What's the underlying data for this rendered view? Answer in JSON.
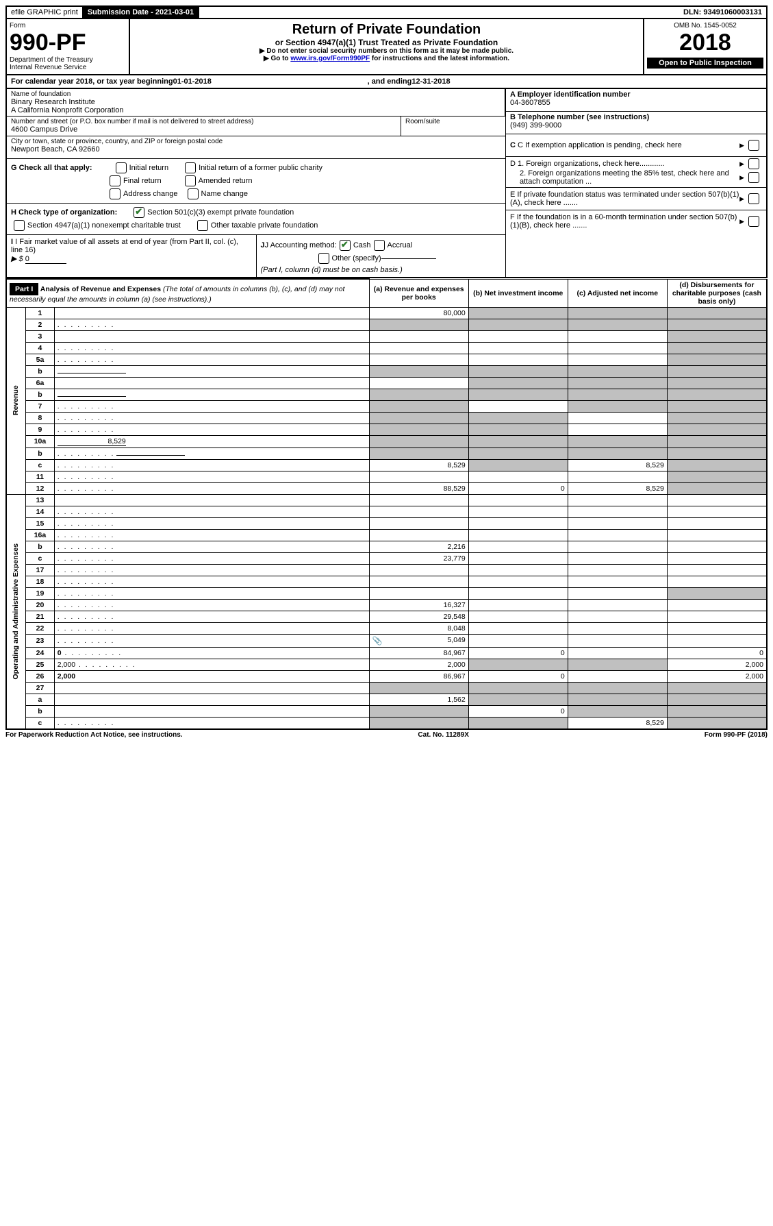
{
  "top": {
    "efile": "efile GRAPHIC print",
    "submission": "Submission Date - 2021-03-01",
    "dln": "DLN: 93491060003131"
  },
  "header": {
    "form_label": "Form",
    "form_num": "990-PF",
    "dept1": "Department of the Treasury",
    "dept2": "Internal Revenue Service",
    "title": "Return of Private Foundation",
    "subtitle": "or Section 4947(a)(1) Trust Treated as Private Foundation",
    "note1": "▶ Do not enter social security numbers on this form as it may be made public.",
    "note2_pre": "▶ Go to ",
    "note2_link": "www.irs.gov/Form990PF",
    "note2_post": " for instructions and the latest information.",
    "omb": "OMB No. 1545-0052",
    "year": "2018",
    "open": "Open to Public Inspection"
  },
  "calendar": {
    "pre": "For calendar year 2018, or tax year beginning ",
    "begin": "01-01-2018",
    "mid": ", and ending ",
    "end": "12-31-2018"
  },
  "info": {
    "name_label": "Name of foundation",
    "name1": "Binary Research Institute",
    "name2": "A California Nonprofit Corporation",
    "addr_label": "Number and street (or P.O. box number if mail is not delivered to street address)",
    "addr": "4600 Campus Drive",
    "room_label": "Room/suite",
    "city_label": "City or town, state or province, country, and ZIP or foreign postal code",
    "city": "Newport Beach, CA  92660",
    "ein_label": "A Employer identification number",
    "ein": "04-3607855",
    "phone_label": "B Telephone number (see instructions)",
    "phone": "(949) 399-9000",
    "c_label": "C If exemption application is pending, check here",
    "d1": "D 1. Foreign organizations, check here............",
    "d2": "2. Foreign organizations meeting the 85% test, check here and attach computation ...",
    "e": "E  If private foundation status was terminated under section 507(b)(1)(A), check here .......",
    "f": "F  If the foundation is in a 60-month termination under section 507(b)(1)(B), check here ......."
  },
  "checks": {
    "g_label": "G Check all that apply:",
    "g_initial": "Initial return",
    "g_initial_former": "Initial return of a former public charity",
    "g_final": "Final return",
    "g_amended": "Amended return",
    "g_address": "Address change",
    "g_name": "Name change",
    "h_label": "H Check type of organization:",
    "h_501c3": "Section 501(c)(3) exempt private foundation",
    "h_4947": "Section 4947(a)(1) nonexempt charitable trust",
    "h_other": "Other taxable private foundation",
    "i_label": "I Fair market value of all assets at end of year (from Part II, col. (c), line 16)",
    "i_amount_pre": "▶ $ ",
    "i_amount": "0",
    "j_label": "J Accounting method:",
    "j_cash": "Cash",
    "j_accrual": "Accrual",
    "j_other": "Other (specify)",
    "j_note": "(Part I, column (d) must be on cash basis.)"
  },
  "part1": {
    "label": "Part I",
    "title": "Analysis of Revenue and Expenses",
    "note": "(The total of amounts in columns (b), (c), and (d) may not necessarily equal the amounts in column (a) (see instructions).)",
    "col_a": "(a)   Revenue and expenses per books",
    "col_b": "(b)  Net investment income",
    "col_c": "(c)  Adjusted net income",
    "col_d": "(d)  Disbursements for charitable purposes (cash basis only)"
  },
  "sections": {
    "revenue": "Revenue",
    "expenses": "Operating and Administrative Expenses"
  },
  "rows": [
    {
      "n": "1",
      "d": "",
      "a": "80,000",
      "b": "",
      "c": "",
      "ga": false,
      "gb": true,
      "gc": true,
      "gd": true
    },
    {
      "n": "2",
      "d": "",
      "a": "",
      "b": "",
      "c": "",
      "ga": true,
      "gb": true,
      "gc": true,
      "gd": true,
      "dots": true
    },
    {
      "n": "3",
      "d": "",
      "a": "",
      "b": "",
      "c": "",
      "gd": true
    },
    {
      "n": "4",
      "d": "",
      "a": "",
      "b": "",
      "c": "",
      "gd": true,
      "dots": true
    },
    {
      "n": "5a",
      "d": "",
      "a": "",
      "b": "",
      "c": "",
      "gd": true,
      "dots": true
    },
    {
      "n": "b",
      "d": "",
      "a": "",
      "b": "",
      "c": "",
      "ga": true,
      "gb": true,
      "gc": true,
      "gd": true,
      "inline": true
    },
    {
      "n": "6a",
      "d": "",
      "a": "",
      "b": "",
      "c": "",
      "gb": true,
      "gc": true,
      "gd": true
    },
    {
      "n": "b",
      "d": "",
      "a": "",
      "b": "",
      "c": "",
      "ga": true,
      "gb": true,
      "gc": true,
      "gd": true,
      "inline": true
    },
    {
      "n": "7",
      "d": "",
      "a": "",
      "b": "",
      "c": "",
      "ga": true,
      "gc": true,
      "gd": true,
      "dots": true
    },
    {
      "n": "8",
      "d": "",
      "a": "",
      "b": "",
      "c": "",
      "ga": true,
      "gb": true,
      "gd": true,
      "dots": true
    },
    {
      "n": "9",
      "d": "",
      "a": "",
      "b": "",
      "c": "",
      "ga": true,
      "gb": true,
      "gd": true,
      "dots": true
    },
    {
      "n": "10a",
      "d": "",
      "a": "",
      "b": "",
      "c": "",
      "ga": true,
      "gb": true,
      "gc": true,
      "gd": true,
      "inline": true,
      "inline_val": "8,529"
    },
    {
      "n": "b",
      "d": "",
      "a": "",
      "b": "",
      "c": "",
      "ga": true,
      "gb": true,
      "gc": true,
      "gd": true,
      "inline": true,
      "dots": true
    },
    {
      "n": "c",
      "d": "",
      "a": "8,529",
      "b": "",
      "c": "8,529",
      "gb": true,
      "gd": true,
      "dots": true
    },
    {
      "n": "11",
      "d": "",
      "a": "",
      "b": "",
      "c": "",
      "gd": true,
      "dots": true
    },
    {
      "n": "12",
      "d": "",
      "a": "88,529",
      "b": "0",
      "c": "8,529",
      "bold": true,
      "gd": true,
      "dots": true
    },
    {
      "n": "13",
      "d": "",
      "a": "",
      "b": "",
      "c": ""
    },
    {
      "n": "14",
      "d": "",
      "a": "",
      "b": "",
      "c": "",
      "dots": true
    },
    {
      "n": "15",
      "d": "",
      "a": "",
      "b": "",
      "c": "",
      "dots": true
    },
    {
      "n": "16a",
      "d": "",
      "a": "",
      "b": "",
      "c": "",
      "dots": true
    },
    {
      "n": "b",
      "d": "",
      "a": "2,216",
      "b": "",
      "c": "",
      "dots": true
    },
    {
      "n": "c",
      "d": "",
      "a": "23,779",
      "b": "",
      "c": "",
      "dots": true
    },
    {
      "n": "17",
      "d": "",
      "a": "",
      "b": "",
      "c": "",
      "dots": true
    },
    {
      "n": "18",
      "d": "",
      "a": "",
      "b": "",
      "c": "",
      "dots": true
    },
    {
      "n": "19",
      "d": "",
      "a": "",
      "b": "",
      "c": "",
      "gd": true,
      "dots": true
    },
    {
      "n": "20",
      "d": "",
      "a": "16,327",
      "b": "",
      "c": "",
      "dots": true
    },
    {
      "n": "21",
      "d": "",
      "a": "29,548",
      "b": "",
      "c": "",
      "dots": true
    },
    {
      "n": "22",
      "d": "",
      "a": "8,048",
      "b": "",
      "c": "",
      "dots": true
    },
    {
      "n": "23",
      "d": "",
      "a": "5,049",
      "b": "",
      "c": "",
      "dots": true,
      "icon": true
    },
    {
      "n": "24",
      "d": "0",
      "a": "84,967",
      "b": "0",
      "c": "",
      "bold": true,
      "dots": true
    },
    {
      "n": "25",
      "d": "2,000",
      "a": "2,000",
      "b": "",
      "c": "",
      "gb": true,
      "gc": true,
      "dots": true
    },
    {
      "n": "26",
      "d": "2,000",
      "a": "86,967",
      "b": "0",
      "c": "",
      "bold": true
    },
    {
      "n": "27",
      "d": "",
      "a": "",
      "b": "",
      "c": "",
      "ga": true,
      "gb": true,
      "gc": true,
      "gd": true
    },
    {
      "n": "a",
      "d": "",
      "a": "1,562",
      "b": "",
      "c": "",
      "bold": true,
      "gb": true,
      "gc": true,
      "gd": true
    },
    {
      "n": "b",
      "d": "",
      "a": "",
      "b": "0",
      "c": "",
      "bold": true,
      "ga": true,
      "gc": true,
      "gd": true
    },
    {
      "n": "c",
      "d": "",
      "a": "",
      "b": "",
      "c": "8,529",
      "bold": true,
      "ga": true,
      "gb": true,
      "gd": true,
      "dots": true
    }
  ],
  "footer": {
    "left": "For Paperwork Reduction Act Notice, see instructions.",
    "center": "Cat. No. 11289X",
    "right": "Form 990-PF (2018)"
  },
  "colors": {
    "grey": "#c0c0c0",
    "link": "#0000cc",
    "check": "#2a7a2a"
  }
}
